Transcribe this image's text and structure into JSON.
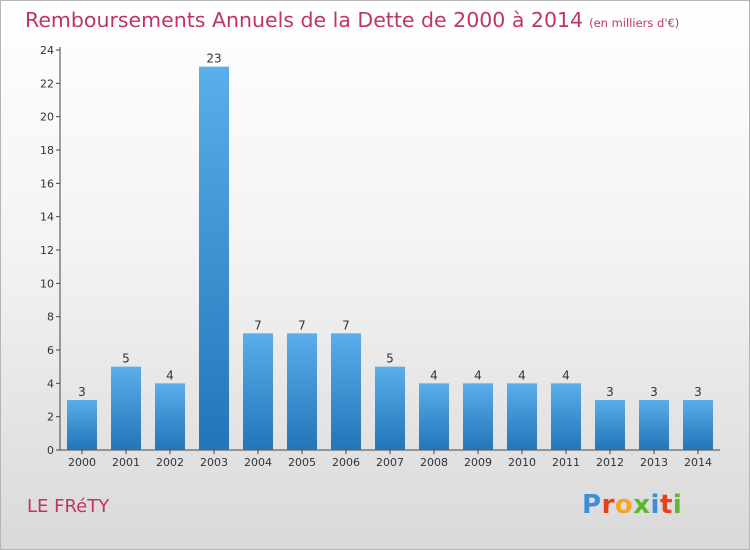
{
  "title": "Remboursements Annuels de la Dette de 2000 à 2014",
  "unit": "(en milliers d'€)",
  "commune": "LE FRéTY",
  "logo": {
    "letters": [
      "P",
      "r",
      "o",
      "x",
      "i",
      "t",
      "i"
    ],
    "colors": [
      "#3a8fd6",
      "#e8401c",
      "#f5a623",
      "#5cb82e",
      "#3a8fd6",
      "#e8401c",
      "#5cb82e"
    ]
  },
  "colors": {
    "accent": "#c0336a",
    "bar_light": "#5aaeea",
    "bar_dark": "#2275b8"
  },
  "chart_data": {
    "type": "bar",
    "title": "Remboursements Annuels de la Dette de 2000 à 2014",
    "categories": [
      "2000",
      "2001",
      "2002",
      "2003",
      "2004",
      "2005",
      "2006",
      "2007",
      "2008",
      "2009",
      "2010",
      "2011",
      "2012",
      "2013",
      "2014"
    ],
    "values": [
      3,
      5,
      4,
      23,
      7,
      7,
      7,
      5,
      4,
      4,
      4,
      4,
      3,
      3,
      3
    ],
    "ylim": [
      0,
      24
    ],
    "yticks": [
      0,
      2,
      4,
      6,
      8,
      10,
      12,
      14,
      16,
      18,
      20,
      22,
      24
    ],
    "grid": false,
    "data_labels": true
  }
}
